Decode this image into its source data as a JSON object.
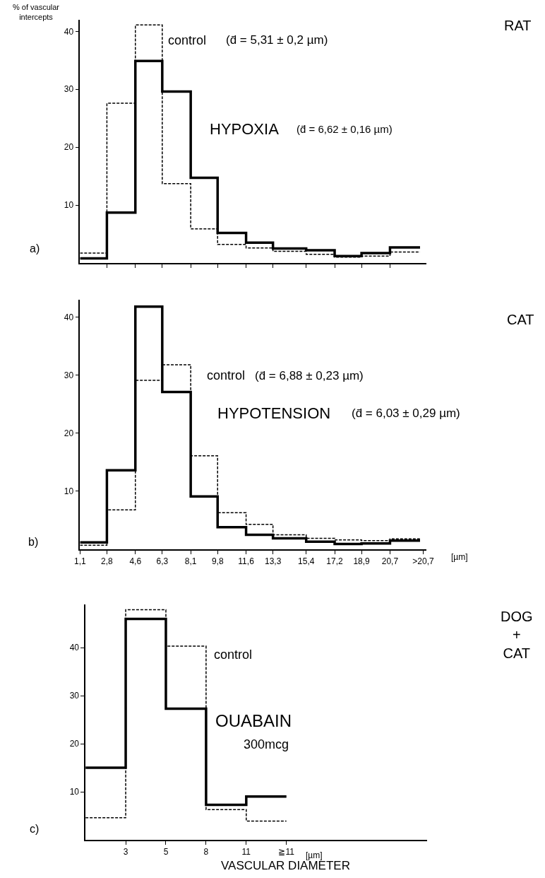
{
  "chart_data": [
    {
      "type": "step",
      "ylabel": "% of vascular\nintercepts",
      "x": [
        1.1,
        2.8,
        4.6,
        6.3,
        8.1,
        9.8,
        11.6,
        13.3,
        15.4,
        17.2,
        18.9,
        20.7,
        22.6
      ],
      "series": [
        {
          "name": "control",
          "color": "#000000",
          "line_style": "dashed",
          "values": [
            1.7,
            27.6,
            41.1,
            13.7,
            5.9,
            3.2,
            2.6,
            2.0,
            1.5,
            1.0,
            1.2,
            1.9,
            1.9
          ]
        },
        {
          "name": "HYPOXIA",
          "color": "#000000",
          "line_style": "solid",
          "values": [
            0.8,
            8.7,
            34.9,
            29.6,
            14.7,
            5.2,
            3.5,
            2.5,
            2.2,
            1.2,
            1.7,
            2.7,
            2.7
          ]
        }
      ],
      "xlim": [
        1.1,
        23.0
      ],
      "ylim": [
        0,
        42
      ],
      "xticks": [
        {
          "value": 2.8,
          "label": null
        },
        {
          "value": 4.6,
          "label": null
        },
        {
          "value": 6.3,
          "label": null
        },
        {
          "value": 8.1,
          "label": null
        },
        {
          "value": 9.8,
          "label": null
        },
        {
          "value": 11.6,
          "label": null
        },
        {
          "value": 13.3,
          "label": null
        },
        {
          "value": 15.4,
          "label": null
        },
        {
          "value": 17.2,
          "label": null
        },
        {
          "value": 18.9,
          "label": null
        },
        {
          "value": 20.7,
          "label": null
        }
      ],
      "yticks": [
        10,
        20,
        30,
        40
      ],
      "tick_labels": "y",
      "grid": false,
      "legend": false,
      "marker": "none",
      "annotations": [
        "a)",
        "(d̄ = 5,31 ± 0,2 µm)",
        "(d̄ = 6,62 ± 0,16 µm)",
        "RAT"
      ]
    },
    {
      "type": "step",
      "x": [
        1.1,
        2.8,
        4.6,
        6.3,
        8.1,
        9.8,
        11.6,
        13.3,
        15.4,
        17.2,
        18.9,
        20.7,
        22.6
      ],
      "series": [
        {
          "name": "control",
          "color": "#000000",
          "line_style": "dashed",
          "values": [
            0.7,
            6.8,
            29.1,
            31.8,
            16.1,
            6.3,
            4.3,
            2.5,
            1.9,
            1.6,
            1.5,
            1.8,
            1.8
          ]
        },
        {
          "name": "HYPOTENSION",
          "color": "#000000",
          "line_style": "solid",
          "values": [
            1.2,
            13.6,
            41.8,
            27.1,
            9.1,
            3.8,
            2.5,
            1.9,
            1.3,
            0.9,
            1.0,
            1.5,
            1.5
          ]
        }
      ],
      "xlim": [
        1.1,
        23.0
      ],
      "ylim": [
        0,
        43
      ],
      "xticks": [
        {
          "value": 1.1,
          "label": "1,1"
        },
        {
          "value": 2.8,
          "label": "2,8"
        },
        {
          "value": 4.6,
          "label": "4,6"
        },
        {
          "value": 6.3,
          "label": "6,3"
        },
        {
          "value": 8.1,
          "label": "8,1"
        },
        {
          "value": 9.8,
          "label": "9,8"
        },
        {
          "value": 11.6,
          "label": "11,6"
        },
        {
          "value": 13.3,
          "label": "13,3"
        },
        {
          "value": 15.4,
          "label": "15,4"
        },
        {
          "value": 17.2,
          "label": "17,2"
        },
        {
          "value": 18.9,
          "label": "18,9"
        },
        {
          "value": 20.7,
          "label": "20,7"
        },
        {
          "value": 22.8,
          "label": ">20,7"
        }
      ],
      "yticks": [
        10,
        20,
        30,
        40
      ],
      "grid": false,
      "legend": false,
      "marker": "none",
      "annotations": [
        "b)",
        "(d̄ = 6,88 ± 0,23 µm)",
        "(d̄ = 6,03 ± 0,29 µm)",
        "[µm]",
        "CAT"
      ]
    },
    {
      "type": "step",
      "xlabel": "VASCULAR DIAMETER",
      "categories": [
        null,
        "3",
        "5",
        "8",
        "11",
        "≧11"
      ],
      "series": [
        {
          "name": "control",
          "color": "#000000",
          "line_style": "dashed",
          "values": [
            4.6,
            47.9,
            40.3,
            6.3,
            3.9,
            3.9
          ]
        },
        {
          "name": "OUABAIN",
          "color": "#000000",
          "line_style": "solid",
          "values": [
            15.0,
            46.0,
            27.3,
            7.3,
            9.0,
            9.0
          ]
        }
      ],
      "ylim": [
        0,
        49
      ],
      "yticks": [
        10,
        20,
        30,
        40
      ],
      "grid": false,
      "legend": false,
      "marker": "none",
      "annotations": [
        "c)",
        "300mcg",
        "[µm]",
        "DOG\n+\nCAT"
      ]
    }
  ]
}
